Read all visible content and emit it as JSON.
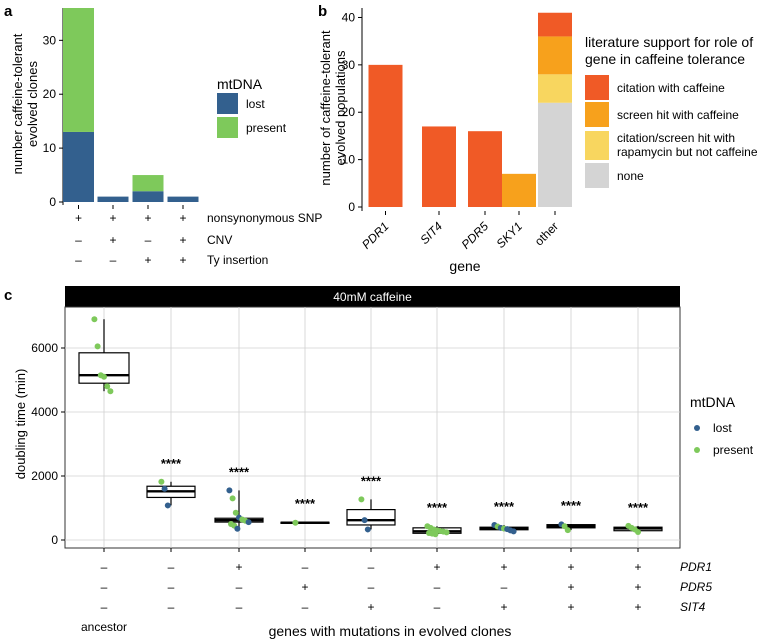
{
  "panel_labels": {
    "a": "a",
    "b": "b",
    "c": "c"
  },
  "colors": {
    "lost": "#33608e",
    "present": "#7ec95b",
    "citation": "#f05a26",
    "screen": "#f7a11c",
    "rapamycin": "#f8d65f",
    "none": "#d4d4d4",
    "strip_bg": "#000000",
    "grid": "#d0d0d0"
  },
  "chart_data": [
    {
      "id": "a",
      "type": "bar",
      "stacked": true,
      "ylabel": "number caffeine-tolerant\nevolved clones",
      "ylim": [
        0,
        36
      ],
      "yticks": [
        0,
        10,
        20,
        30
      ],
      "categories": [
        "g1",
        "g2",
        "g3",
        "g4"
      ],
      "series": [
        {
          "name": "lost",
          "color": "#33608e",
          "values": [
            13,
            1,
            2,
            1
          ]
        },
        {
          "name": "present",
          "color": "#7ec95b",
          "values": [
            23,
            0,
            3,
            0
          ]
        }
      ],
      "legend": {
        "title": "mtDNA",
        "entries": [
          "lost",
          "present"
        ],
        "position": "right"
      },
      "genotype_rows": [
        {
          "label": "nonsynonymous SNP",
          "marks": [
            "+",
            "+",
            "+",
            "+"
          ]
        },
        {
          "label": "CNV",
          "marks": [
            "–",
            "+",
            "–",
            "+"
          ]
        },
        {
          "label": "Ty insertion",
          "marks": [
            "–",
            "–",
            "+",
            "+"
          ]
        }
      ]
    },
    {
      "id": "b",
      "type": "bar",
      "stacked": true,
      "xlabel": "gene",
      "ylabel": "number of caffeine-tolerant\nevolved populations",
      "ylim": [
        0,
        42
      ],
      "yticks": [
        0,
        10,
        20,
        30,
        40
      ],
      "categories": [
        "PDR1",
        "SIT4",
        "PDR5",
        "SKY1",
        "other"
      ],
      "series": [
        {
          "name": "none",
          "color": "#d4d4d4",
          "values": [
            0,
            0,
            0,
            0,
            22
          ]
        },
        {
          "name": "citation/screen hit with rapamycin but not caffeine",
          "color": "#f8d65f",
          "values": [
            0,
            0,
            0,
            0,
            6
          ]
        },
        {
          "name": "screen hit with caffeine",
          "color": "#f7a11c",
          "values": [
            0,
            0,
            0,
            7,
            8
          ]
        },
        {
          "name": "citation with caffeine",
          "color": "#f05a26",
          "values": [
            30,
            17,
            16,
            0,
            5
          ]
        }
      ],
      "legend": {
        "title_lines": [
          "literature support for role of",
          "gene in caffeine tolerance"
        ],
        "entries": [
          {
            "lines": [
              "citation with caffeine"
            ],
            "color": "#f05a26"
          },
          {
            "lines": [
              "screen hit with caffeine"
            ],
            "color": "#f7a11c"
          },
          {
            "lines": [
              "citation/screen hit with",
              "rapamycin but not caffeine"
            ],
            "color": "#f8d65f"
          },
          {
            "lines": [
              "none"
            ],
            "color": "#d4d4d4"
          }
        ],
        "position": "right"
      }
    },
    {
      "id": "c",
      "type": "box",
      "strip_label": "40mM caffeine",
      "xlabel": "genes with mutations in evolved clones",
      "ylabel": "doubling time (min)",
      "ylim": [
        0,
        7200
      ],
      "yticks": [
        0,
        2000,
        4000,
        6000
      ],
      "significance": "****",
      "groups": [
        {
          "id": "ancestor",
          "q1": 4900,
          "median": 5150,
          "q3": 5850,
          "wlo": 4650,
          "whi": 6900,
          "sig": false,
          "points": [
            [
              6900,
              "present"
            ],
            [
              6050,
              "present"
            ],
            [
              5150,
              "present"
            ],
            [
              5100,
              "present"
            ],
            [
              4800,
              "present"
            ],
            [
              4650,
              "present"
            ]
          ]
        },
        {
          "id": "g2",
          "q1": 1330,
          "median": 1520,
          "q3": 1680,
          "wlo": 1080,
          "whi": 1820,
          "sig": true,
          "points": [
            [
              1820,
              "present"
            ],
            [
              1600,
              "lost"
            ],
            [
              1080,
              "lost"
            ]
          ]
        },
        {
          "id": "g3",
          "q1": 560,
          "median": 620,
          "q3": 680,
          "wlo": 340,
          "whi": 1550,
          "sig": true,
          "points": [
            [
              1550,
              "lost"
            ],
            [
              1300,
              "present"
            ],
            [
              850,
              "present"
            ],
            [
              700,
              "lost"
            ],
            [
              640,
              "present"
            ],
            [
              600,
              "present"
            ],
            [
              560,
              "lost"
            ],
            [
              500,
              "present"
            ],
            [
              450,
              "present"
            ],
            [
              350,
              "lost"
            ]
          ]
        },
        {
          "id": "g4",
          "q1": 520,
          "median": 540,
          "q3": 555,
          "wlo": 520,
          "whi": 555,
          "sig": true,
          "points": [
            [
              540,
              "present"
            ]
          ]
        },
        {
          "id": "g5",
          "q1": 470,
          "median": 620,
          "q3": 950,
          "wlo": 330,
          "whi": 1270,
          "sig": true,
          "points": [
            [
              1270,
              "present"
            ],
            [
              620,
              "lost"
            ],
            [
              330,
              "lost"
            ]
          ]
        },
        {
          "id": "g6",
          "q1": 210,
          "median": 270,
          "q3": 380,
          "wlo": 180,
          "whi": 430,
          "sig": true,
          "points": [
            [
              430,
              "present"
            ],
            [
              380,
              "present"
            ],
            [
              330,
              "present"
            ],
            [
              300,
              "present"
            ],
            [
              280,
              "present"
            ],
            [
              260,
              "present"
            ],
            [
              240,
              "present"
            ],
            [
              220,
              "present"
            ],
            [
              200,
              "present"
            ],
            [
              180,
              "present"
            ]
          ]
        },
        {
          "id": "g7",
          "q1": 320,
          "median": 360,
          "q3": 400,
          "wlo": 270,
          "whi": 470,
          "sig": true,
          "points": [
            [
              470,
              "lost"
            ],
            [
              420,
              "present"
            ],
            [
              380,
              "lost"
            ],
            [
              360,
              "present"
            ],
            [
              340,
              "lost"
            ],
            [
              300,
              "lost"
            ],
            [
              270,
              "lost"
            ]
          ]
        },
        {
          "id": "g8",
          "q1": 380,
          "median": 430,
          "q3": 480,
          "wlo": 310,
          "whi": 500,
          "sig": true,
          "points": [
            [
              490,
              "lost"
            ],
            [
              430,
              "present"
            ],
            [
              310,
              "present"
            ]
          ]
        },
        {
          "id": "g9",
          "q1": 290,
          "median": 360,
          "q3": 400,
          "wlo": 230,
          "whi": 440,
          "sig": true,
          "points": [
            [
              440,
              "present"
            ],
            [
              380,
              "present"
            ],
            [
              330,
              "present"
            ],
            [
              250,
              "present"
            ]
          ]
        }
      ],
      "legend": {
        "title": "mtDNA",
        "entries": [
          "lost",
          "present"
        ],
        "position": "right"
      },
      "genotype_rows": [
        {
          "label": "PDR1",
          "marks": [
            "–",
            "–",
            "+",
            "–",
            "–",
            "+",
            "+",
            "+",
            "+"
          ]
        },
        {
          "label": "PDR5",
          "marks": [
            "–",
            "–",
            "–",
            "+",
            "–",
            "–",
            "–",
            "+",
            "+"
          ]
        },
        {
          "label": "SIT4",
          "marks": [
            "–",
            "–",
            "–",
            "–",
            "+",
            "–",
            "+",
            "+",
            "+"
          ]
        }
      ],
      "ancestor_label": "ancestor"
    }
  ]
}
